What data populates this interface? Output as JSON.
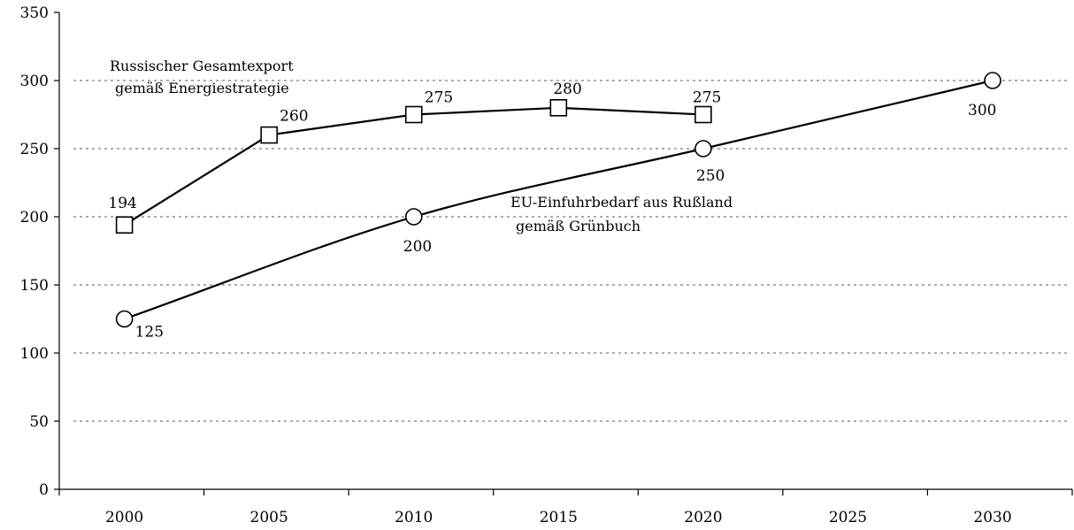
{
  "chart_data": {
    "type": "line",
    "title": "",
    "xlabel": "",
    "ylabel": "",
    "ylim": [
      0,
      350
    ],
    "y_ticks": [
      0,
      50,
      100,
      150,
      200,
      250,
      300,
      350
    ],
    "x_ticks": [
      2000,
      2005,
      2010,
      2015,
      2020,
      2025,
      2030
    ],
    "grid": "horizontal-dotted",
    "series": [
      {
        "key": "export",
        "marker": "square",
        "x": [
          2000,
          2005,
          2010,
          2015,
          2020
        ],
        "values": [
          194,
          260,
          275,
          280,
          275
        ],
        "labels": [
          "194",
          "260",
          "275",
          "280",
          "275"
        ]
      },
      {
        "key": "eu",
        "marker": "circle",
        "x": [
          2000,
          2010,
          2020,
          2030
        ],
        "values": [
          125,
          200,
          250,
          300
        ],
        "labels": [
          "125",
          "200",
          "250",
          "300"
        ]
      }
    ],
    "annotations": {
      "export": [
        "Russischer Gesamtexport",
        "gemäß Energiestrategie"
      ],
      "eu": [
        "EU-Einfuhrbedarf aus Rußland",
        "gemäß Grünbuch"
      ]
    }
  }
}
